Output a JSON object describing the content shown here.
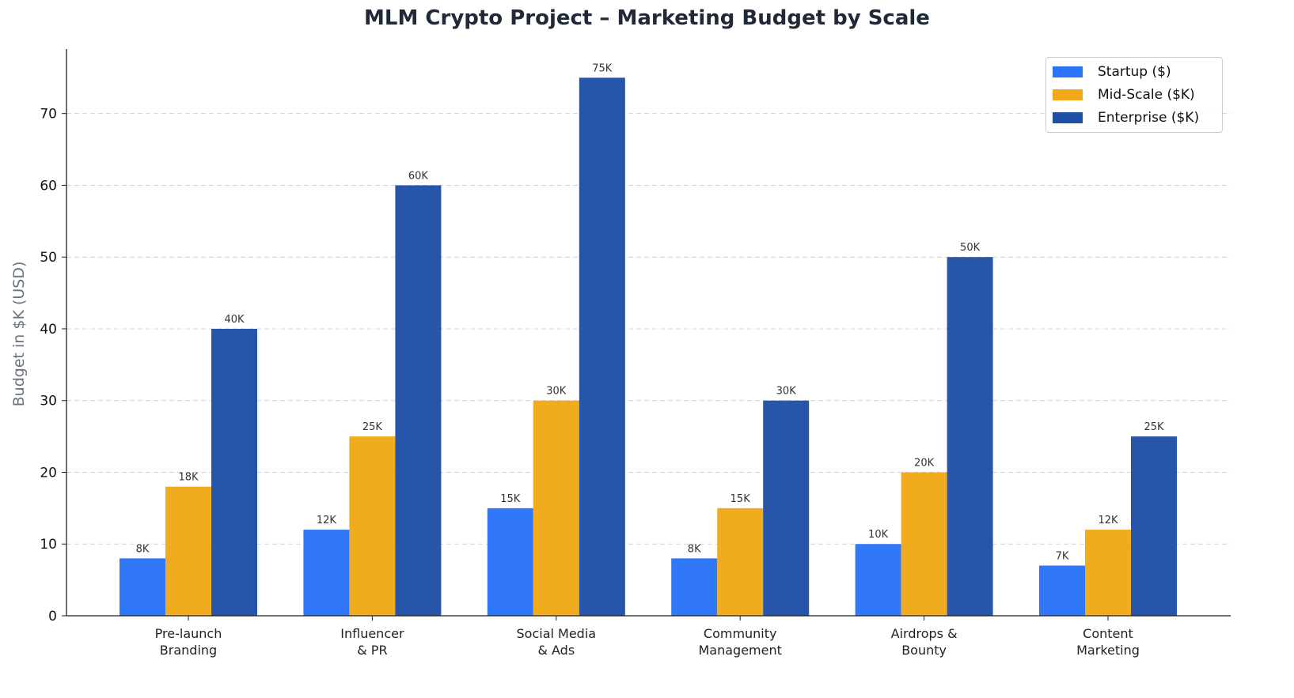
{
  "chart_data": {
    "type": "bar",
    "title": "MLM Crypto Project – Marketing Budget by Scale",
    "xlabel": "",
    "ylabel": "Budget in $K (USD)",
    "ylim": [
      0,
      79
    ],
    "yticks": [
      0,
      10,
      20,
      30,
      40,
      50,
      60,
      70
    ],
    "grid": "y dashed",
    "legend": "top-right",
    "categories": [
      "Pre-launch\nBranding",
      "Influencer\n& PR",
      "Social Media\n& Ads",
      "Community\nManagement",
      "Airdrops &\nBounty",
      "Content\nMarketing"
    ],
    "series": [
      {
        "name": "Startup ($)",
        "color": "#2a74f9",
        "values": [
          8,
          12,
          15,
          8,
          10,
          7
        ],
        "labels": [
          "8K",
          "12K",
          "15K",
          "8K",
          "10K",
          "7K"
        ]
      },
      {
        "name": "Mid-Scale ($K)",
        "color": "#f0a818",
        "values": [
          18,
          25,
          30,
          15,
          20,
          12
        ],
        "labels": [
          "18K",
          "25K",
          "30K",
          "15K",
          "20K",
          "12K"
        ]
      },
      {
        "name": "Enterprise ($K)",
        "color": "#1f4fa6",
        "values": [
          40,
          60,
          75,
          30,
          50,
          25
        ],
        "labels": [
          "40K",
          "60K",
          "75K",
          "30K",
          "50K",
          "25K"
        ]
      }
    ]
  }
}
